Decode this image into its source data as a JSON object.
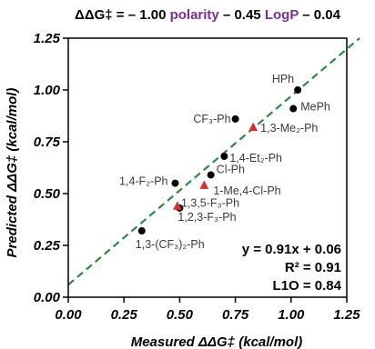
{
  "chart_data": {
    "type": "scatter",
    "title_parts": [
      {
        "text": "ΔΔG‡ = – 1.00 ",
        "style": "plain"
      },
      {
        "text": "polarity",
        "style": "purple"
      },
      {
        "text": " – 0.45 ",
        "style": "plain"
      },
      {
        "text": "LogP",
        "style": "purple"
      },
      {
        "text": " – 0.04",
        "style": "plain"
      }
    ],
    "xlabel": "Measured ΔΔG‡ (kcal/mol)",
    "ylabel": "Predicted ΔΔG‡ (kcal/mol)",
    "xlim": [
      0.0,
      1.25
    ],
    "ylim": [
      0.0,
      1.25
    ],
    "xticks": [
      "0.00",
      "0.25",
      "0.50",
      "0.75",
      "1.00",
      "1.25"
    ],
    "yticks": [
      "0.00",
      "0.25",
      "0.50",
      "0.75",
      "1.00",
      "1.25"
    ],
    "fit_line": {
      "slope": 0.91,
      "intercept": 0.06,
      "style": "dashed",
      "color": "#2e8b3e"
    },
    "series": [
      {
        "marker": "circle",
        "color": "#000000",
        "points": [
          {
            "x": 1.03,
            "y": 1.0,
            "label": "HPh"
          },
          {
            "x": 1.01,
            "y": 0.91,
            "label": "MePh"
          },
          {
            "x": 0.75,
            "y": 0.86,
            "label": "CF₃-Ph"
          },
          {
            "x": 0.7,
            "y": 0.68,
            "label": "1,4-Et₂-Ph"
          },
          {
            "x": 0.64,
            "y": 0.59,
            "label": "Cl-Ph"
          },
          {
            "x": 0.48,
            "y": 0.55,
            "label": "1,4-F₂-Ph"
          },
          {
            "x": 0.5,
            "y": 0.43,
            "label": "1,2,3-F₃-Ph"
          },
          {
            "x": 0.33,
            "y": 0.32,
            "label": "1,3-(CF₃)₂-Ph"
          }
        ]
      },
      {
        "marker": "triangle",
        "color": "#d32f2f",
        "points": [
          {
            "x": 0.83,
            "y": 0.82,
            "label": "1,3-Me₂-Ph"
          },
          {
            "x": 0.61,
            "y": 0.54,
            "label": "1-Me,4-Cl-Ph"
          },
          {
            "x": 0.49,
            "y": 0.44,
            "label": "1,3,5-F₃-Ph"
          }
        ]
      }
    ],
    "stats": [
      "y = 0.91x + 0.06",
      "R² = 0.91",
      "L1O = 0.84"
    ],
    "grid": false
  }
}
